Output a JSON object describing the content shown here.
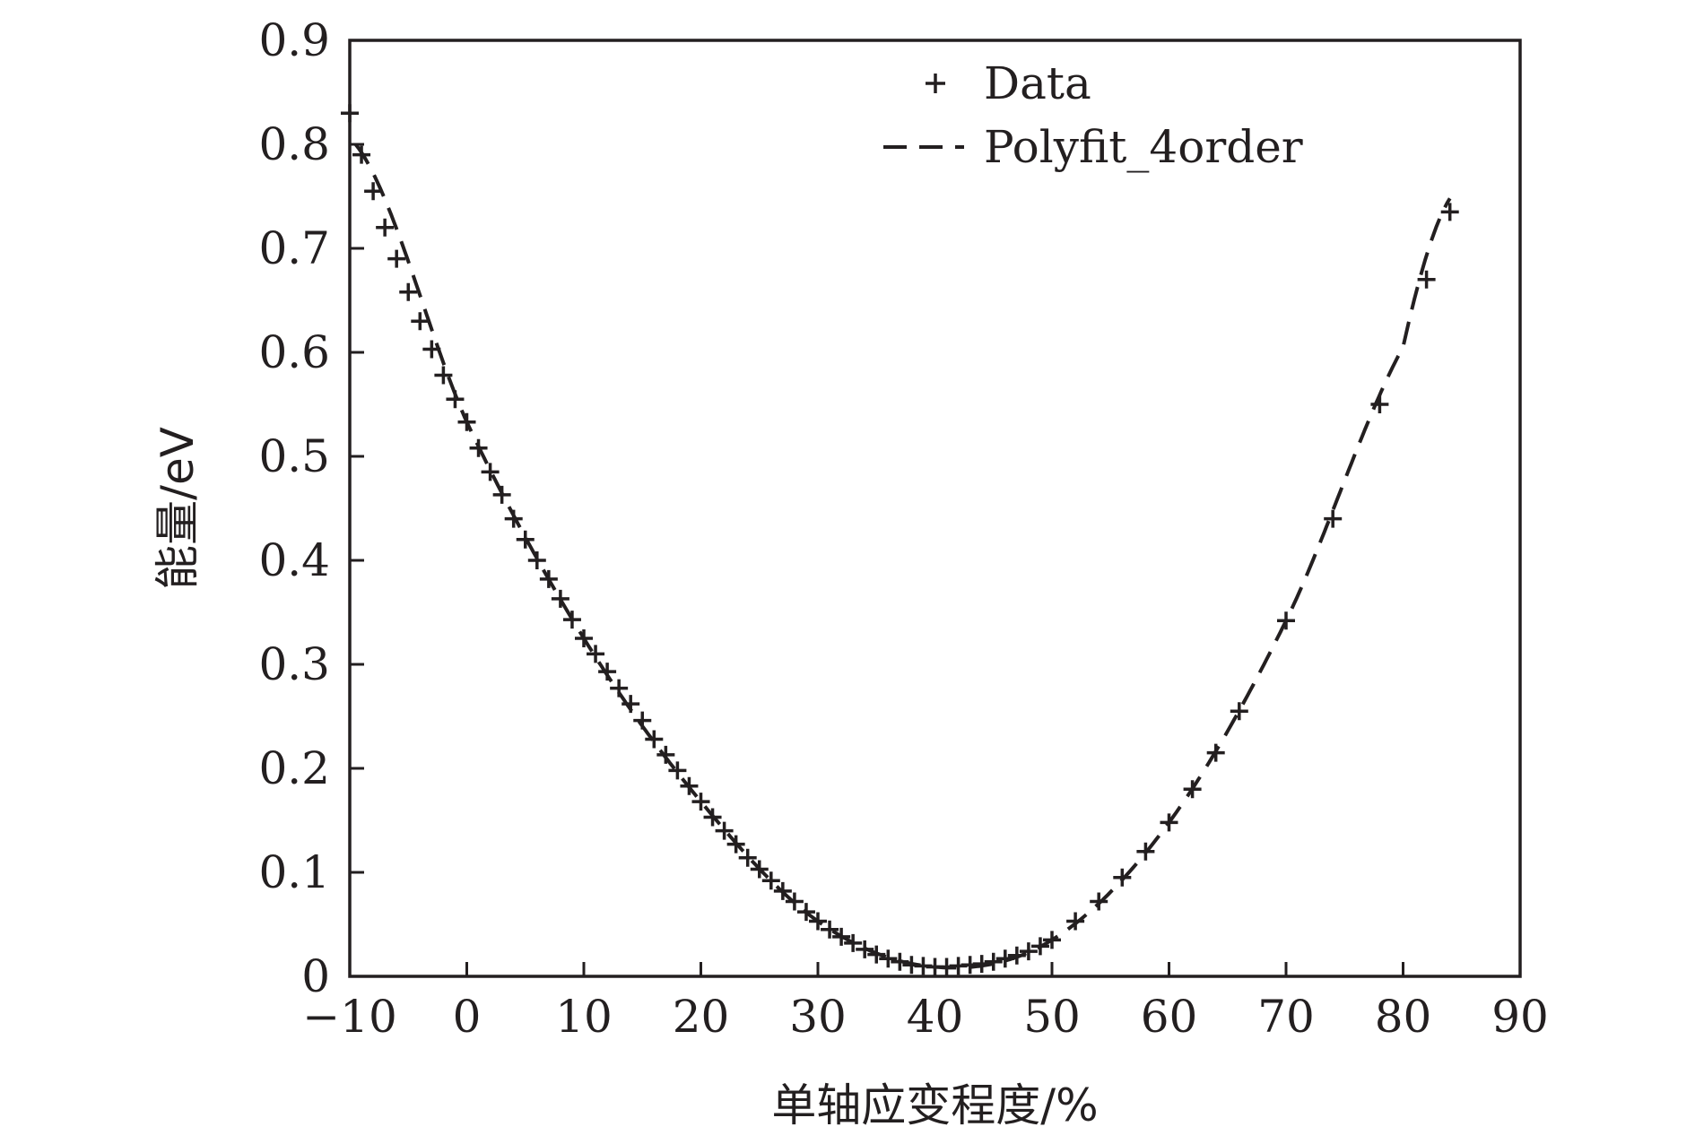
{
  "chart_data": {
    "type": "scatter",
    "title": "",
    "xlabel": "单轴应变程度/%",
    "ylabel": "能量/eV",
    "xlim": [
      -10,
      90
    ],
    "ylim": [
      0,
      0.9
    ],
    "xticks": [
      -10,
      0,
      10,
      20,
      30,
      40,
      50,
      60,
      70,
      80,
      90
    ],
    "xtick_labels": [
      "−10",
      "0",
      "10",
      "20",
      "30",
      "40",
      "50",
      "60",
      "70",
      "80",
      "90"
    ],
    "yticks": [
      0,
      0.1,
      0.2,
      0.3,
      0.4,
      0.5,
      0.6,
      0.7,
      0.8,
      0.9
    ],
    "ytick_labels": [
      "0",
      "0.1",
      "0.2",
      "0.3",
      "0.4",
      "0.5",
      "0.6",
      "0.7",
      "0.8",
      "0.9"
    ],
    "grid": false,
    "legend_position": "top-right",
    "colors": {
      "ink": "#231f20"
    },
    "series": [
      {
        "name": "Data",
        "marker": "plus",
        "x": [
          -10,
          -9,
          -8,
          -7,
          -6,
          -5,
          -4,
          -3,
          -2,
          -1,
          0,
          1,
          2,
          3,
          4,
          5,
          6,
          7,
          8,
          9,
          10,
          11,
          12,
          13,
          14,
          15,
          16,
          17,
          18,
          19,
          20,
          21,
          22,
          23,
          24,
          25,
          26,
          27,
          28,
          29,
          30,
          31,
          32,
          33,
          34,
          35,
          36,
          37,
          38,
          39,
          40,
          41,
          42,
          43,
          44,
          45,
          46,
          47,
          48,
          49,
          50,
          52,
          54,
          56,
          58,
          60,
          62,
          64,
          66,
          70,
          74,
          78,
          82,
          84
        ],
        "y": [
          0.83,
          0.79,
          0.755,
          0.72,
          0.69,
          0.658,
          0.63,
          0.603,
          0.578,
          0.555,
          0.533,
          0.508,
          0.485,
          0.463,
          0.44,
          0.42,
          0.4,
          0.382,
          0.363,
          0.343,
          0.325,
          0.31,
          0.293,
          0.277,
          0.262,
          0.246,
          0.228,
          0.213,
          0.198,
          0.183,
          0.168,
          0.153,
          0.14,
          0.127,
          0.114,
          0.103,
          0.092,
          0.082,
          0.072,
          0.062,
          0.053,
          0.045,
          0.038,
          0.032,
          0.026,
          0.021,
          0.017,
          0.014,
          0.011,
          0.01,
          0.009,
          0.009,
          0.01,
          0.011,
          0.012,
          0.014,
          0.017,
          0.02,
          0.024,
          0.029,
          0.035,
          0.053,
          0.072,
          0.095,
          0.12,
          0.148,
          0.18,
          0.215,
          0.255,
          0.342,
          0.44,
          0.55,
          0.67,
          0.735
        ]
      },
      {
        "name": "Polyfit_4order",
        "line_style": "dashed",
        "polyfit_4order": {
          "x": [
            -9.5,
            0,
            10,
            20,
            30,
            40,
            50,
            60,
            70,
            80,
            84
          ],
          "y": [
            0.8,
            0.533,
            0.325,
            0.168,
            0.053,
            0.009,
            0.035,
            0.148,
            0.342,
            0.605,
            0.748
          ]
        }
      }
    ]
  }
}
